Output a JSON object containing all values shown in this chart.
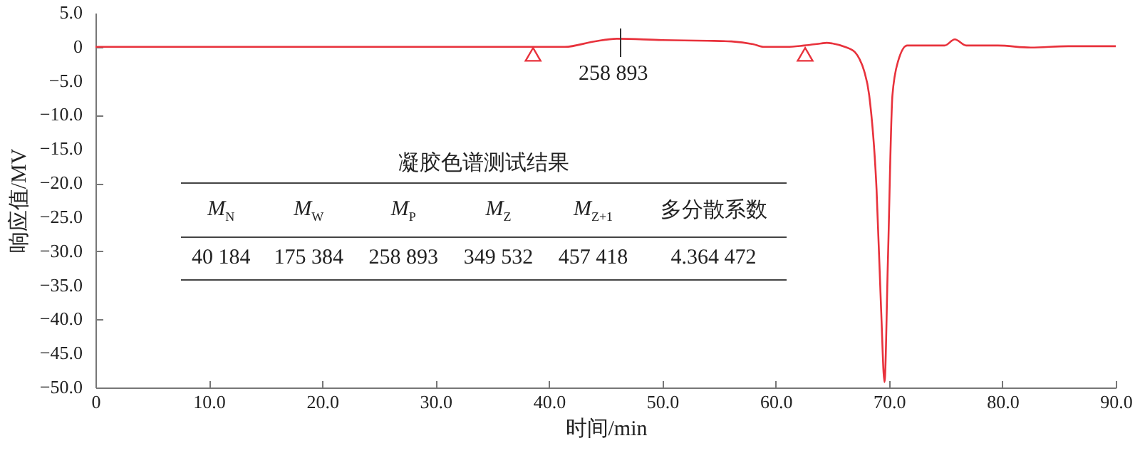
{
  "chart_data": {
    "type": "line",
    "xlabel": "时间/min",
    "ylabel": "响应值/MV",
    "xlim": [
      0,
      90
    ],
    "xticks": [
      0,
      {
        "value": 10,
        "label": "10.0"
      },
      {
        "value": 20,
        "label": "20.0"
      },
      {
        "value": 30,
        "label": "30.0"
      },
      {
        "value": 40,
        "label": "40.0"
      },
      {
        "value": 50,
        "label": "50.0"
      },
      {
        "value": 60,
        "label": "60.0"
      },
      {
        "value": 70,
        "label": "70.0"
      },
      {
        "value": 80,
        "label": "80.0"
      },
      {
        "value": 90,
        "label": "90.0"
      }
    ],
    "ylim": [
      -50,
      5
    ],
    "yticks": [
      {
        "value": 5,
        "label": "5.0"
      },
      0,
      {
        "value": -5,
        "label": "−5.0"
      },
      {
        "value": -10,
        "label": "−10.0"
      },
      {
        "value": -15,
        "label": "−15.0"
      },
      {
        "value": -20,
        "label": "−20.0"
      },
      {
        "value": -25,
        "label": "−25.0"
      },
      {
        "value": -30,
        "label": "−30.0"
      },
      {
        "value": -35,
        "label": "−35.0"
      },
      {
        "value": -40,
        "label": "−40.0"
      },
      {
        "value": -45,
        "label": "−45.0"
      },
      {
        "value": -50,
        "label": "−50.0"
      }
    ],
    "grid": false,
    "line_style": "solid",
    "series": [
      {
        "color": "#e8323c",
        "x": [
          0,
          10,
          20,
          30,
          38.6,
          41.4,
          44,
          46,
          50,
          54,
          56.1,
          58,
          59,
          61,
          62.5,
          64,
          64.5,
          65,
          66.1,
          67,
          67.4,
          67.8,
          68.25,
          68.9,
          69.3,
          69.6,
          69.9,
          70.3,
          70.8,
          71.6,
          73,
          74.9,
          75.8,
          76.8,
          79.6,
          82.5,
          85.8,
          90
        ],
        "values": [
          0,
          0,
          0,
          0,
          0,
          0,
          0.8,
          1.2,
          1.0,
          0.9,
          0.8,
          0.4,
          0,
          0,
          0.2,
          0.5,
          0.6,
          0.5,
          0,
          -0.8,
          -1.8,
          -3.5,
          -7.1,
          -21,
          -38.5,
          -49.2,
          -31.4,
          -7.1,
          -2.1,
          0.2,
          0.2,
          0.2,
          1.1,
          0.2,
          0.2,
          -0.1,
          0.1,
          0.1
        ]
      },
      {
        "type": "scatter",
        "marker": "triangle",
        "color": "#e8323c",
        "x": [
          38.6,
          62.6
        ],
        "values": [
          -1.1,
          -1.1
        ]
      }
    ],
    "annotations": [
      "258 893",
      "凝胶色谱测试结果",
      "M$_{N}$",
      "M$_{W}$",
      "M$_{P}$",
      "M$_{Z}$",
      "M$_{Z+1}$",
      "多分散系数",
      "40 184",
      "175 384",
      "258 893",
      "349 532",
      "457 418",
      "4.364 472"
    ]
  }
}
